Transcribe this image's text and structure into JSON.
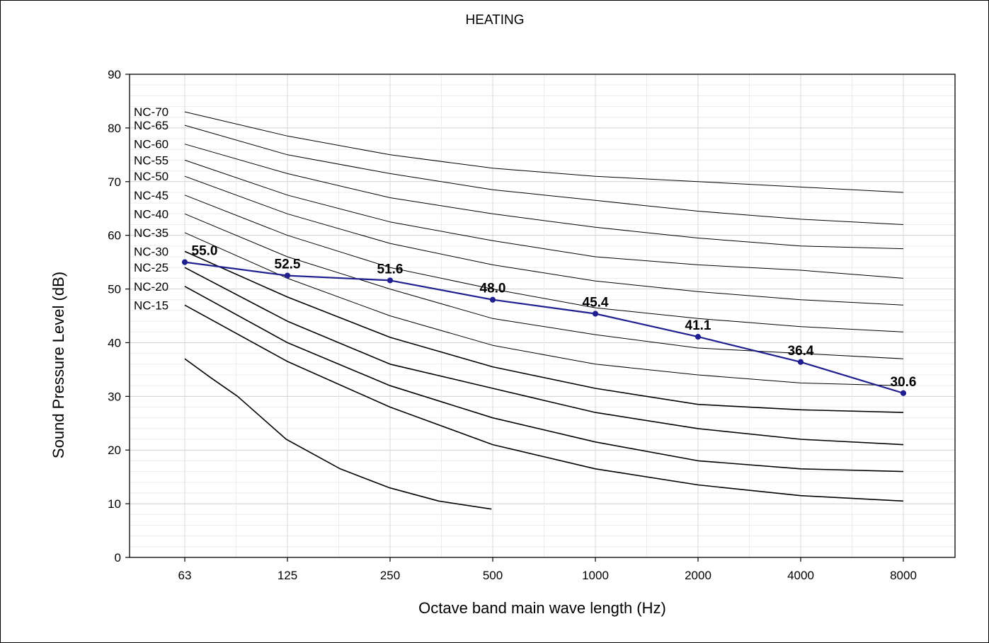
{
  "chart_data": {
    "type": "line",
    "title": "HEATING",
    "xlabel": "Octave band main wave length (Hz)",
    "ylabel": "Sound Pressure Level (dB)",
    "x_scale": "log2",
    "categories": [
      "63",
      "125",
      "250",
      "500",
      "1000",
      "2000",
      "4000",
      "8000"
    ],
    "ylim": [
      0,
      90
    ],
    "yticks": [
      "0",
      "10",
      "20",
      "30",
      "40",
      "50",
      "60",
      "70",
      "80",
      "90"
    ],
    "grid": true,
    "colors": {
      "measured": "#1f1f8f",
      "nc_curve": "#000000",
      "grid": "#d8d8d8"
    },
    "measured": {
      "values": [
        55.0,
        52.5,
        51.6,
        48.0,
        45.4,
        41.1,
        36.4,
        30.6
      ],
      "labels": [
        "55.0",
        "52.5",
        "51.6",
        "48.0",
        "45.4",
        "41.1",
        "36.4",
        "30.6"
      ]
    },
    "nc_curves": [
      {
        "name": "NC-70",
        "values": [
          83,
          78.5,
          75,
          72.5,
          71,
          70,
          69,
          68
        ]
      },
      {
        "name": "NC-65",
        "values": [
          80.5,
          75,
          71.5,
          68.5,
          66.5,
          64.5,
          63,
          62
        ]
      },
      {
        "name": "NC-60",
        "values": [
          77,
          71.5,
          67,
          64,
          61.5,
          59.5,
          58,
          57.5
        ]
      },
      {
        "name": "NC-55",
        "values": [
          74,
          67.5,
          62.5,
          59,
          56,
          54.5,
          53.5,
          52
        ]
      },
      {
        "name": "NC-50",
        "values": [
          71,
          64,
          58.5,
          54.5,
          51.5,
          49.5,
          48,
          47
        ]
      },
      {
        "name": "NC-45",
        "values": [
          67.5,
          60,
          54,
          50,
          46.5,
          44.5,
          43,
          42
        ]
      },
      {
        "name": "NC-40",
        "values": [
          64,
          56,
          50,
          44.5,
          41.5,
          39,
          38,
          37
        ]
      },
      {
        "name": "NC-35",
        "values": [
          60.5,
          52,
          45,
          39.5,
          36,
          34,
          32.5,
          32
        ]
      },
      {
        "name": "NC-30",
        "values": [
          57,
          48.5,
          41,
          35.5,
          31.5,
          28.5,
          27.5,
          27
        ]
      },
      {
        "name": "NC-25",
        "values": [
          54,
          44,
          36,
          31.5,
          27,
          24,
          22,
          21
        ]
      },
      {
        "name": "NC-20",
        "values": [
          50.5,
          40,
          32,
          26,
          21.5,
          18,
          16.5,
          16
        ]
      },
      {
        "name": "NC-15",
        "values": [
          47,
          36.5,
          28,
          21,
          16.5,
          13.5,
          11.5,
          10.5
        ]
      },
      {
        "name": "",
        "x": [
          63,
          75,
          90,
          125,
          180,
          250,
          350,
          500
        ],
        "values": [
          37,
          33.5,
          30,
          22,
          16.5,
          13,
          10.5,
          9
        ]
      }
    ]
  }
}
